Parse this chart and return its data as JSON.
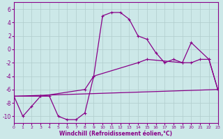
{
  "xlabel": "Windchill (Refroidissement éolien,°C)",
  "xlim": [
    0,
    23
  ],
  "ylim": [
    -11,
    7
  ],
  "yticks": [
    -10,
    -8,
    -6,
    -4,
    -2,
    0,
    2,
    4,
    6
  ],
  "xticks": [
    0,
    1,
    2,
    3,
    4,
    5,
    6,
    7,
    8,
    9,
    10,
    11,
    12,
    13,
    14,
    15,
    16,
    17,
    18,
    19,
    20,
    21,
    22,
    23
  ],
  "bg_color": "#cce8e8",
  "line_color": "#880088",
  "grid_color": "#b0cccc",
  "line1_x": [
    0,
    1,
    2,
    3,
    4,
    5,
    6,
    7,
    8,
    9,
    10,
    11,
    12,
    13,
    14,
    15,
    16,
    17,
    18,
    19,
    20,
    21,
    22,
    23
  ],
  "line1_y": [
    -7,
    -10,
    -8.5,
    -7,
    -7,
    -10,
    -10.5,
    -10.5,
    -9.5,
    -4,
    5,
    5.5,
    5.5,
    4.5,
    2,
    1.5,
    -0.5,
    -2,
    -1.5,
    -2,
    -2,
    -1.5,
    -1.5,
    -6
  ],
  "line2_x": [
    0,
    23
  ],
  "line2_y": [
    -7,
    -6
  ],
  "line3_x": [
    0,
    3,
    8,
    9,
    14,
    15,
    19,
    20,
    22,
    23
  ],
  "line3_y": [
    -7,
    -7,
    -6,
    -4,
    -2,
    -1.5,
    -2,
    1,
    -1.5,
    -6
  ]
}
